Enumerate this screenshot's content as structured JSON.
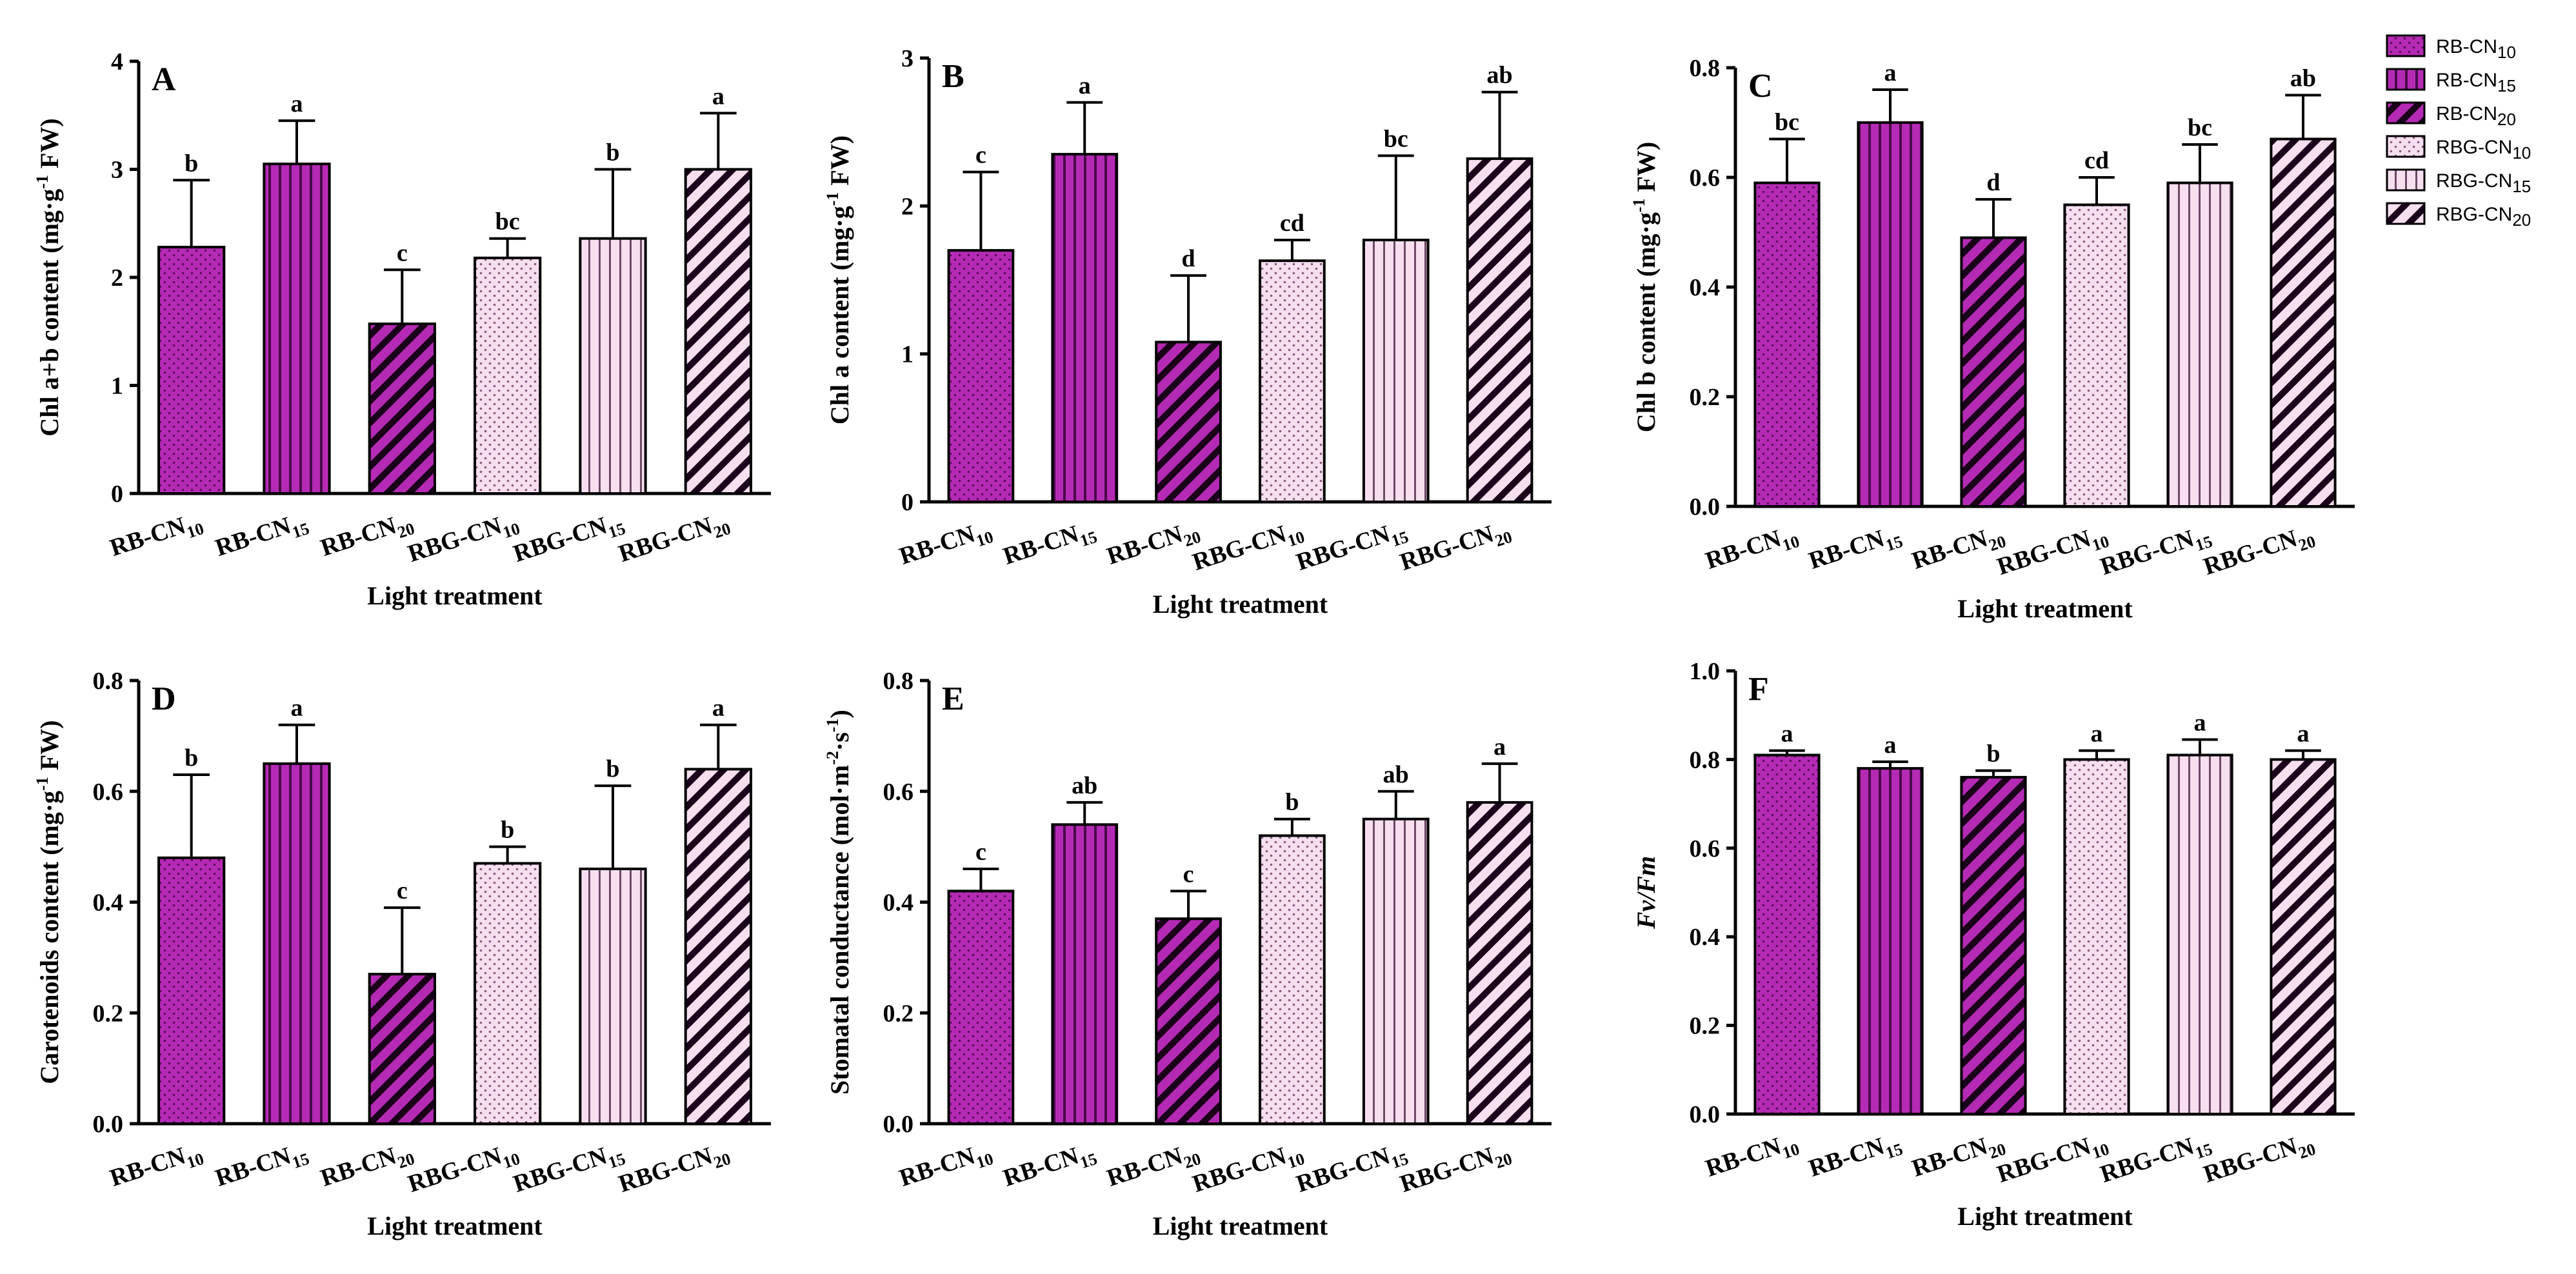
{
  "colors": {
    "rb": "#b52ab5",
    "rbg": "#f7dff0",
    "stroke": "#000000"
  },
  "legend": {
    "items": [
      {
        "base": "RB-CN",
        "sub": "10",
        "group": "rb",
        "pattern": "dots"
      },
      {
        "base": "RB-CN",
        "sub": "15",
        "group": "rb",
        "pattern": "vlines"
      },
      {
        "base": "RB-CN",
        "sub": "20",
        "group": "rb",
        "pattern": "diag"
      },
      {
        "base": "RBG-CN",
        "sub": "10",
        "group": "rbg",
        "pattern": "dots"
      },
      {
        "base": "RBG-CN",
        "sub": "15",
        "group": "rbg",
        "pattern": "vlines"
      },
      {
        "base": "RBG-CN",
        "sub": "20",
        "group": "rbg",
        "pattern": "diag"
      }
    ]
  },
  "chart_data": [
    {
      "type": "bar",
      "panel": "A",
      "categories": [
        "RB-CN10",
        "RB-CN15",
        "RB-CN20",
        "RBG-CN10",
        "RBG-CN15",
        "RBG-CN20"
      ],
      "values": [
        2.28,
        3.05,
        1.57,
        2.18,
        2.36,
        3.0
      ],
      "errors": [
        0.62,
        0.4,
        0.5,
        0.18,
        0.64,
        0.52
      ],
      "letters": [
        "b",
        "a",
        "c",
        "bc",
        "b",
        "a"
      ],
      "ylabel": {
        "pre": "Chl a+b content (mg·g",
        "sup": "-1",
        "post": " FW)"
      },
      "xlabel": "Light treatment",
      "ylim": [
        0,
        4
      ],
      "yticks": [
        "0",
        "1",
        "2",
        "3",
        "4"
      ]
    },
    {
      "type": "bar",
      "panel": "B",
      "categories": [
        "RB-CN10",
        "RB-CN15",
        "RB-CN20",
        "RBG-CN10",
        "RBG-CN15",
        "RBG-CN20"
      ],
      "values": [
        1.7,
        2.35,
        1.08,
        1.63,
        1.77,
        2.32
      ],
      "errors": [
        0.53,
        0.35,
        0.45,
        0.14,
        0.57,
        0.45
      ],
      "letters": [
        "c",
        "a",
        "d",
        "cd",
        "bc",
        "ab"
      ],
      "ylabel": {
        "pre": "Chl a content (mg·g",
        "sup": "-1",
        "post": " FW)"
      },
      "xlabel": "Light treatment",
      "ylim": [
        0,
        3
      ],
      "yticks": [
        "0",
        "1",
        "2",
        "3"
      ]
    },
    {
      "type": "bar",
      "panel": "C",
      "categories": [
        "RB-CN10",
        "RB-CN15",
        "RB-CN20",
        "RBG-CN10",
        "RBG-CN15",
        "RBG-CN20"
      ],
      "values": [
        0.59,
        0.7,
        0.49,
        0.55,
        0.59,
        0.67
      ],
      "errors": [
        0.08,
        0.06,
        0.07,
        0.05,
        0.07,
        0.08
      ],
      "letters": [
        "bc",
        "a",
        "d",
        "cd",
        "bc",
        "ab"
      ],
      "ylabel": {
        "pre": "Chl b content (mg·g",
        "sup": "-1",
        "post": " FW)"
      },
      "xlabel": "Light treatment",
      "ylim": [
        0,
        0.8
      ],
      "yticks": [
        "0.0",
        "0.2",
        "0.4",
        "0.6",
        "0.8"
      ]
    },
    {
      "type": "bar",
      "panel": "D",
      "categories": [
        "RB-CN10",
        "RB-CN15",
        "RB-CN20",
        "RBG-CN10",
        "RBG-CN15",
        "RBG-CN20"
      ],
      "values": [
        0.48,
        0.65,
        0.27,
        0.47,
        0.46,
        0.64
      ],
      "errors": [
        0.15,
        0.07,
        0.12,
        0.03,
        0.15,
        0.08
      ],
      "letters": [
        "b",
        "a",
        "c",
        "b",
        "b",
        "a"
      ],
      "ylabel": {
        "pre": "Carotenoids content (mg·g",
        "sup": "-1",
        "post": " FW)"
      },
      "xlabel": "Light treatment",
      "ylim": [
        0,
        0.8
      ],
      "yticks": [
        "0.0",
        "0.2",
        "0.4",
        "0.6",
        "0.8"
      ]
    },
    {
      "type": "bar",
      "panel": "E",
      "categories": [
        "RB-CN10",
        "RB-CN15",
        "RB-CN20",
        "RBG-CN10",
        "RBG-CN15",
        "RBG-CN20"
      ],
      "values": [
        0.42,
        0.54,
        0.37,
        0.52,
        0.55,
        0.58
      ],
      "errors": [
        0.04,
        0.04,
        0.05,
        0.03,
        0.05,
        0.07
      ],
      "letters": [
        "c",
        "ab",
        "c",
        "b",
        "ab",
        "a"
      ],
      "ylabel": {
        "pre": "Stomatal conductance (mol·m",
        "sup": "-2",
        "mid": "·s",
        "sup2": "-1",
        "post": ")"
      },
      "xlabel": "Light treatment",
      "ylim": [
        0,
        0.8
      ],
      "yticks": [
        "0.0",
        "0.2",
        "0.4",
        "0.6",
        "0.8"
      ]
    },
    {
      "type": "bar",
      "panel": "F",
      "categories": [
        "RB-CN10",
        "RB-CN15",
        "RB-CN20",
        "RBG-CN10",
        "RBG-CN15",
        "RBG-CN20"
      ],
      "values": [
        0.81,
        0.78,
        0.76,
        0.8,
        0.81,
        0.8
      ],
      "errors": [
        0.01,
        0.015,
        0.015,
        0.02,
        0.035,
        0.02
      ],
      "letters": [
        "a",
        "a",
        "b",
        "a",
        "a",
        "a"
      ],
      "ylabel": {
        "pre": "Fv/Fm",
        "italic": true
      },
      "xlabel": "Light treatment",
      "ylim": [
        0,
        1.0
      ],
      "yticks": [
        "0.0",
        "0.2",
        "0.4",
        "0.6",
        "0.8",
        "1.0"
      ]
    }
  ]
}
